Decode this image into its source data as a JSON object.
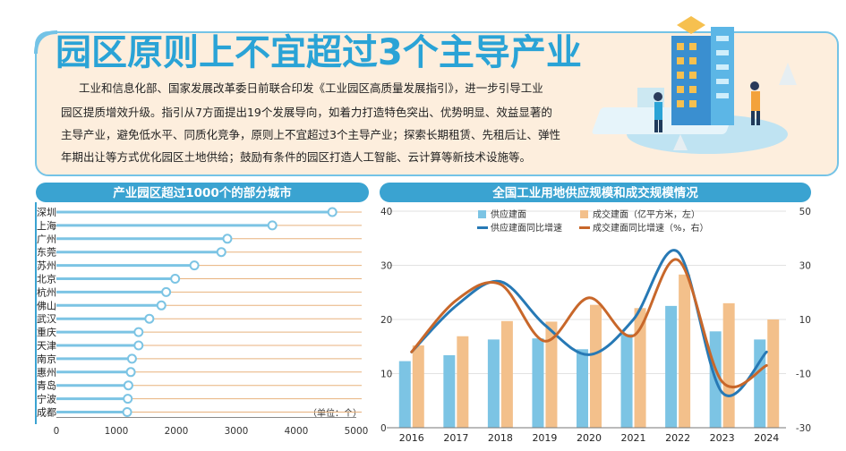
{
  "header": {
    "title": "园区原则上不宜超过3个主导产业",
    "intro_lines": [
      "工业和信息化部、国家发展改革委日前联合印发《工业园区高质量发展指引》，进一步引导工业",
      "园区提质增效升级。指引从7方面提出19个发展导向，如着力打造特色突出、优势明显、效益显著的",
      "主导产业，避免低水平、同质化竞争，原则上不宜超过3个主导产业；探索长期租赁、先租后让、弹性",
      "年期出让等方式优化园区土地供给；鼓励有条件的园区打造人工智能、云计算等新技术设施等。"
    ]
  },
  "colors": {
    "title_blue": "#2aa3d6",
    "header_bg": "#fdeedd",
    "header_border": "#74c3e6",
    "bar_header": "#3aa3d1",
    "dot_line": "#7cc4e4",
    "grid_orange": "#e8b27d",
    "supply_bar": "#7cc4e4",
    "deal_bar": "#f3c08b",
    "supply_line": "#2779b5",
    "deal_line": "#c8672a"
  },
  "chart_data": [
    {
      "type": "bar",
      "title": "产业园区超过1000个的部分城市",
      "unit_label": "（单位：个）",
      "categories": [
        "深圳",
        "上海",
        "广州",
        "东莞",
        "苏州",
        "北京",
        "杭州",
        "佛山",
        "武汉",
        "重庆",
        "天津",
        "南京",
        "惠州",
        "青岛",
        "宁波",
        "成都"
      ],
      "values": [
        4600,
        3600,
        2850,
        2750,
        2300,
        1980,
        1830,
        1750,
        1550,
        1370,
        1370,
        1260,
        1240,
        1200,
        1190,
        1180
      ],
      "xlim": [
        0,
        5000
      ],
      "xticks": [
        "0",
        "1000",
        "2000",
        "3000",
        "4000",
        "5000"
      ]
    },
    {
      "type": "bar",
      "title": "全国工业用地供应规模和成交规模情况",
      "categories": [
        "2016",
        "2017",
        "2018",
        "2019",
        "2020",
        "2021",
        "2022",
        "2023",
        "2024"
      ],
      "ylim_left": [
        0,
        40
      ],
      "ylim_right": [
        -30,
        50
      ],
      "left_ticks": [
        "40",
        "30",
        "20",
        "10",
        "0"
      ],
      "right_ticks": [
        "50",
        "30",
        "10",
        "-10",
        "-30"
      ],
      "legend": [
        {
          "label": "供应建面",
          "kind": "bar",
          "color": "#7cc4e4"
        },
        {
          "label": "成交建面（亿平方米，左）",
          "kind": "bar",
          "color": "#f3c08b"
        },
        {
          "label": "供应建面同比增速",
          "kind": "line",
          "color": "#2779b5"
        },
        {
          "label": "成交建面同比增速（%，右）",
          "kind": "line",
          "color": "#c8672a"
        }
      ],
      "series": [
        {
          "name": "供应建面",
          "axis": "left",
          "values": [
            12.3,
            13.4,
            16.3,
            16.5,
            14.5,
            17.3,
            22.5,
            17.8,
            16.3
          ]
        },
        {
          "name": "成交建面",
          "axis": "left",
          "values": [
            15.2,
            16.9,
            19.7,
            19.6,
            22.7,
            22.1,
            28.3,
            23.0,
            20.0
          ]
        },
        {
          "name": "供应建面同比增速",
          "axis": "right",
          "values": [
            -2,
            15,
            24,
            8,
            -3,
            10,
            35,
            -17,
            -2
          ]
        },
        {
          "name": "成交建面同比增速",
          "axis": "right",
          "values": [
            -2,
            17,
            23,
            2,
            18,
            4,
            32,
            -13,
            -7
          ]
        }
      ]
    }
  ]
}
